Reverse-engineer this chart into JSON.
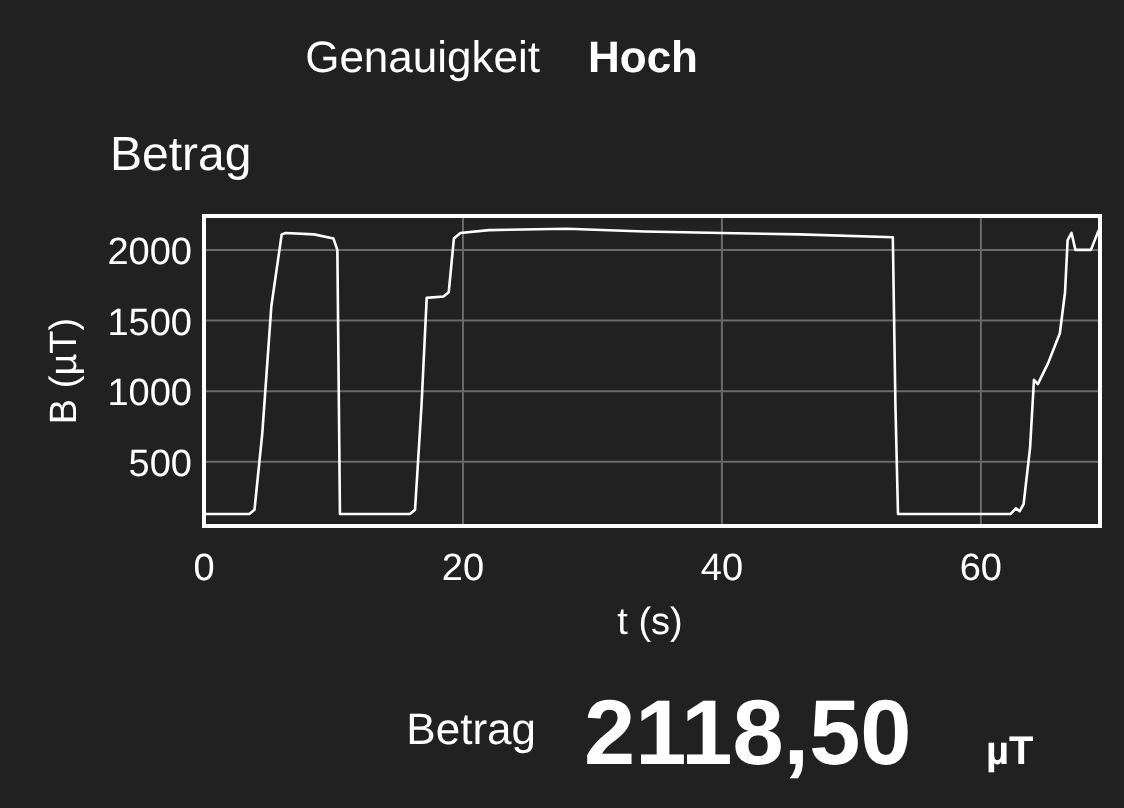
{
  "chart_data": {
    "type": "line",
    "title": "Betrag",
    "xlabel": "t (s)",
    "ylabel": "B (µT)",
    "annotations": [
      "Genauigkeit",
      "Hoch",
      "Betrag",
      "2118,50",
      "µT"
    ],
    "x": [
      0,
      3.5,
      3.9,
      4.5,
      5.2,
      6.0,
      6.3,
      8.5,
      10.0,
      10.3,
      10.5,
      10.8,
      15.9,
      16.3,
      16.8,
      17.2,
      18.5,
      18.9,
      19.3,
      19.8,
      22,
      28,
      34,
      40,
      46,
      53.2,
      53.4,
      53.6,
      62.3,
      62.7,
      63.0,
      63.3,
      63.8,
      64.1,
      64.4,
      65.2,
      66.1,
      66.5,
      66.7,
      67.0,
      67.3,
      68.5,
      69.1
    ],
    "series": [
      {
        "color": "#ffffff",
        "values": [
          130,
          130,
          160,
          700,
          1600,
          2110,
          2120,
          2110,
          2080,
          2000,
          130,
          130,
          130,
          160,
          900,
          1660,
          1670,
          1700,
          2080,
          2120,
          2140,
          2150,
          2130,
          2120,
          2110,
          2090,
          900,
          130,
          130,
          170,
          150,
          200,
          600,
          1080,
          1050,
          1200,
          1410,
          1700,
          2070,
          2120,
          2000,
          2000,
          2140
        ]
      }
    ],
    "xlim": [
      0,
      69.2
    ],
    "ylim": [
      45,
      2240
    ],
    "xticks": [
      0,
      20,
      40,
      60
    ],
    "yticks": [
      500,
      1000,
      1500,
      2000
    ],
    "grid": true
  }
}
